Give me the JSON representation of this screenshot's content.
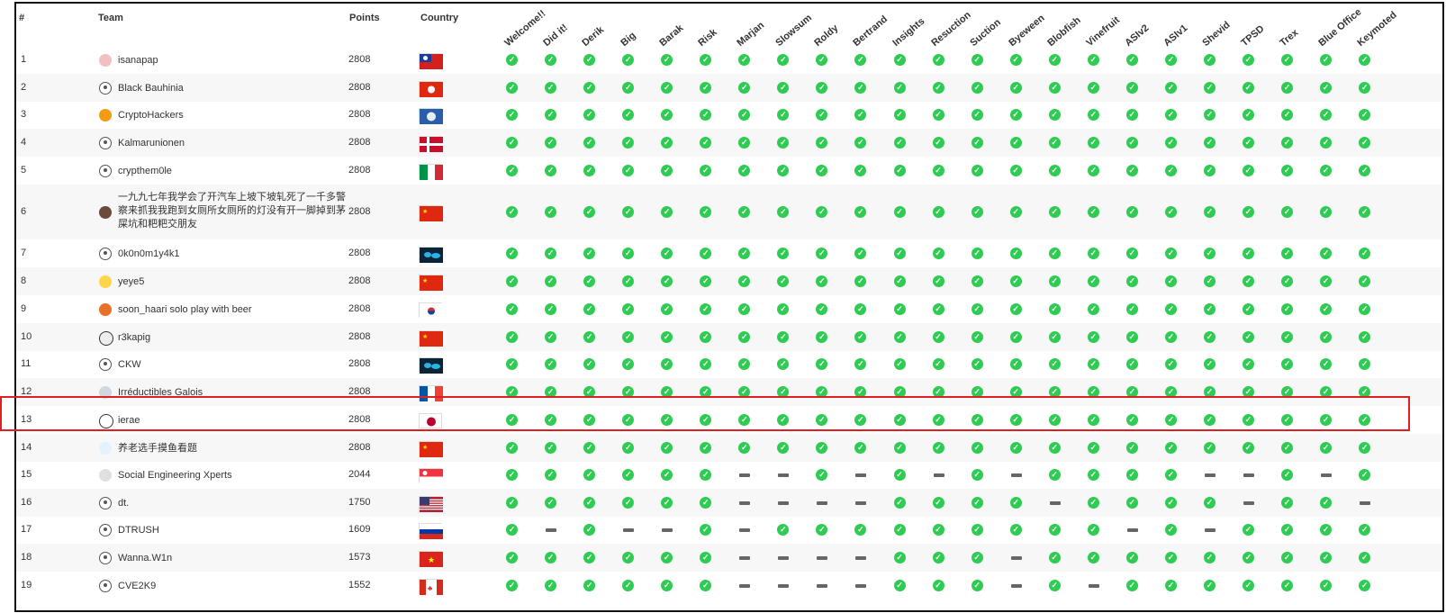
{
  "headers": {
    "rank": "#",
    "team": "Team",
    "points": "Points",
    "country": "Country"
  },
  "challenges": [
    "Welcome!!",
    "Did it!",
    "Derik",
    "Big",
    "Barak",
    "Risk",
    "Marjan",
    "Slowsum",
    "Roldy",
    "Bertrand",
    "Insights",
    "Resuction",
    "Suction",
    "Byeween",
    "Blobfish",
    "Vinefruit",
    "ASIv2",
    "ASIv1",
    "Shevid",
    "TPSD",
    "Trex",
    "Blue Office",
    "Keymoted"
  ],
  "highlighted_rank": 13,
  "teams": [
    {
      "rank": "1",
      "name": "isanapap",
      "points": "2808",
      "country": "Taiwan",
      "avatar": "team-logo",
      "solved": "11111111111111111111111"
    },
    {
      "rank": "2",
      "name": "Black Bauhinia",
      "points": "2808",
      "country": "Hong Kong",
      "avatar": "generic",
      "solved": "11111111111111111111111"
    },
    {
      "rank": "3",
      "name": "CryptoHackers",
      "points": "2808",
      "country": "Antarctica",
      "avatar": "orange-coin",
      "solved": "11111111111111111111111"
    },
    {
      "rank": "4",
      "name": "Kalmarunionen",
      "points": "2808",
      "country": "Denmark",
      "avatar": "generic",
      "solved": "11111111111111111111111"
    },
    {
      "rank": "5",
      "name": "crypthem0le",
      "points": "2808",
      "country": "Italy",
      "avatar": "generic",
      "solved": "11111111111111111111111"
    },
    {
      "rank": "6",
      "name": "一九九七年我学会了开汽车上坡下坡轧死了一千多警察来抓我我跑到女厕所女厕所的灯没有开一脚掉到茅屎坑和粑粑交朋友",
      "points": "2808",
      "country": "China",
      "avatar": "photo",
      "solved": "11111111111111111111111"
    },
    {
      "rank": "7",
      "name": "0k0n0m1y4k1",
      "points": "2808",
      "country": "World",
      "avatar": "generic",
      "solved": "11111111111111111111111"
    },
    {
      "rank": "8",
      "name": "yeye5",
      "points": "2808",
      "country": "China",
      "avatar": "smile",
      "solved": "11111111111111111111111"
    },
    {
      "rank": "9",
      "name": "soon_haari solo play with beer",
      "points": "2808",
      "country": "South Korea",
      "avatar": "beer",
      "solved": "11111111111111111111111"
    },
    {
      "rank": "10",
      "name": "r3kapig",
      "points": "2808",
      "country": "China",
      "avatar": "pig",
      "solved": "11111111111111111111111"
    },
    {
      "rank": "11",
      "name": "CKW",
      "points": "2808",
      "country": "World",
      "avatar": "generic",
      "solved": "11111111111111111111111"
    },
    {
      "rank": "12",
      "name": "Irréductibles Galois",
      "points": "2808",
      "country": "France",
      "avatar": "gaul",
      "solved": "11111111111111111111111"
    },
    {
      "rank": "13",
      "name": "ierae",
      "points": "2808",
      "country": "Japan",
      "avatar": "wave",
      "solved": "11111111111111111111111"
    },
    {
      "rank": "14",
      "name": "养老选手摸鱼看题",
      "points": "2808",
      "country": "China",
      "avatar": "fish",
      "solved": "11111111111111111111111"
    },
    {
      "rank": "15",
      "name": "Social Engineering Xperts",
      "points": "2044",
      "country": "Singapore",
      "avatar": "sex",
      "solved": "11111100101010111100101"
    },
    {
      "rank": "16",
      "name": "dt.",
      "points": "1750",
      "country": "USA",
      "avatar": "generic",
      "solved": "11111100001111011110110"
    },
    {
      "rank": "17",
      "name": "DTRUSH",
      "points": "1609",
      "country": "Russia",
      "avatar": "generic",
      "solved": "10100101111111110101111"
    },
    {
      "rank": "18",
      "name": "Wanna.W1n",
      "points": "1573",
      "country": "Vietnam",
      "avatar": "generic",
      "solved": "11111100001110111111111"
    },
    {
      "rank": "19",
      "name": "CVE2K9",
      "points": "1552",
      "country": "Canada",
      "avatar": "generic",
      "solved": "11111100001110101111111"
    }
  ]
}
